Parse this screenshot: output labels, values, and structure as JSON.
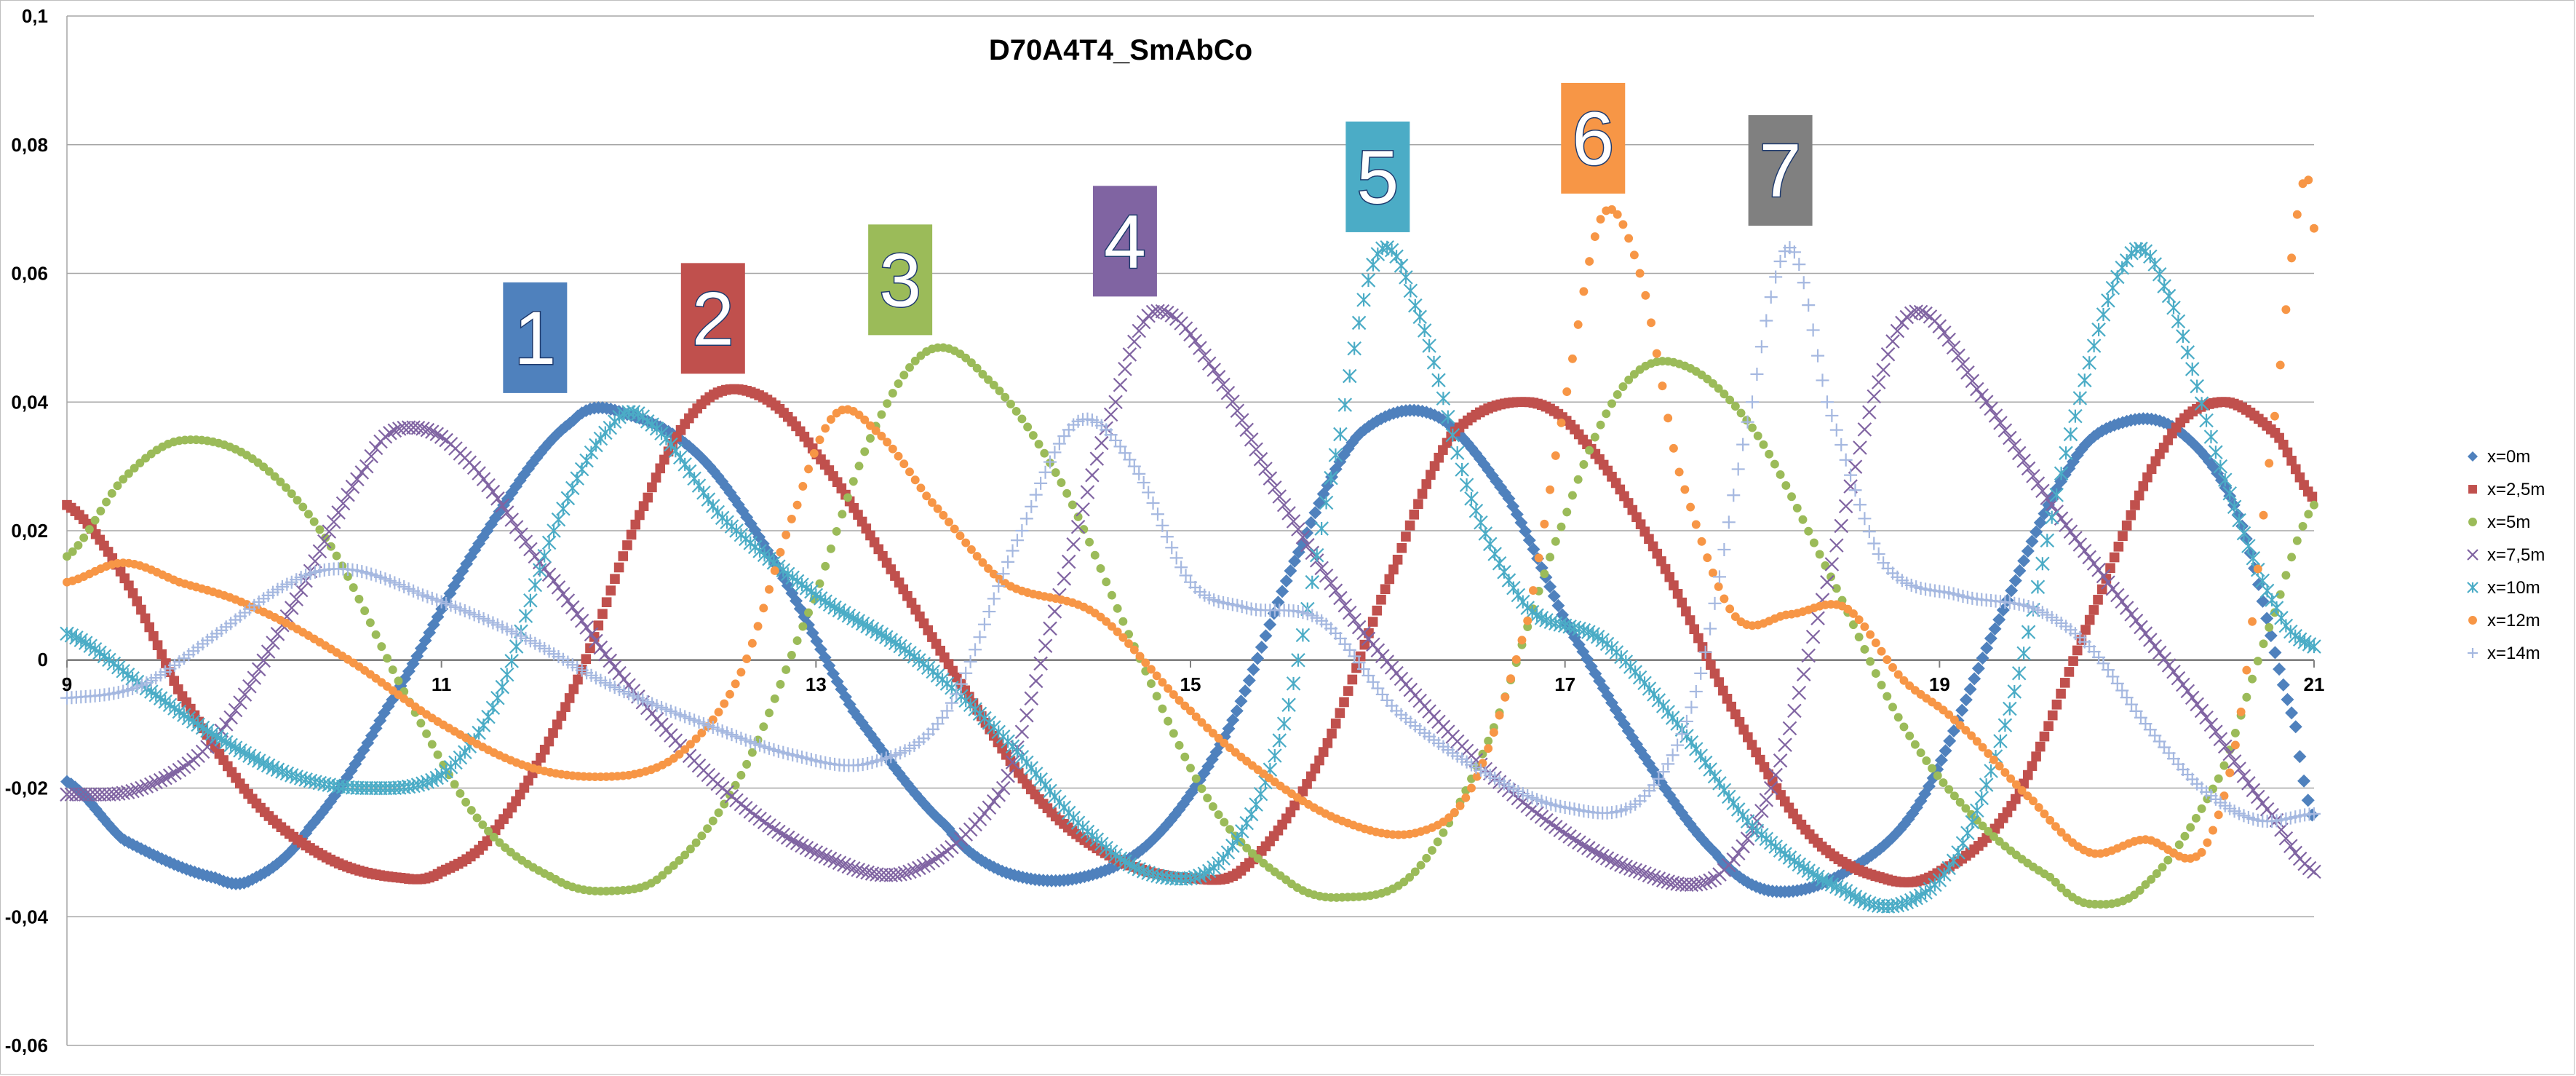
{
  "chart_data": {
    "type": "scatter",
    "title": "D70A4T4_SmAbCo",
    "xlabel": "",
    "ylabel": "",
    "xlim": [
      9,
      21
    ],
    "ylim": [
      -0.06,
      0.1
    ],
    "x_ticks": [
      "9",
      "11",
      "13",
      "15",
      "17",
      "19",
      "21"
    ],
    "y_ticks": [
      "0,1",
      "0,08",
      "0,06",
      "0,04",
      "0,02",
      "0",
      "-0,02",
      "-0,04",
      "-0,06"
    ],
    "grid": "horizontal",
    "legend_position": "right",
    "series": [
      {
        "name": "x=0m",
        "color": "#4f81bd",
        "marker": "diamond",
        "points": [
          [
            9.0,
            -0.019
          ],
          [
            9.3,
            -0.028
          ],
          [
            9.8,
            -0.034
          ],
          [
            10.0,
            -0.034
          ],
          [
            10.3,
            -0.026
          ],
          [
            10.7,
            -0.008
          ],
          [
            11.2,
            0.018
          ],
          [
            11.7,
            0.037
          ],
          [
            12.0,
            0.038
          ],
          [
            12.4,
            0.031
          ],
          [
            12.8,
            0.014
          ],
          [
            13.2,
            -0.008
          ],
          [
            13.7,
            -0.026
          ],
          [
            14.0,
            -0.033
          ],
          [
            14.4,
            -0.034
          ],
          [
            14.8,
            -0.028
          ],
          [
            15.2,
            -0.011
          ],
          [
            15.6,
            0.018
          ],
          [
            15.9,
            0.035
          ],
          [
            16.3,
            0.038
          ],
          [
            16.7,
            0.025
          ],
          [
            17.0,
            0.006
          ],
          [
            17.4,
            -0.014
          ],
          [
            17.8,
            -0.03
          ],
          [
            18.1,
            -0.036
          ],
          [
            18.5,
            -0.033
          ],
          [
            18.9,
            -0.022
          ],
          [
            19.3,
            0.005
          ],
          [
            19.7,
            0.03
          ],
          [
            20.0,
            0.037
          ],
          [
            20.3,
            0.035
          ],
          [
            20.6,
            0.022
          ],
          [
            20.9,
            -0.01
          ],
          [
            21.0,
            -0.025
          ]
        ]
      },
      {
        "name": "x=2,5m",
        "color": "#c0504d",
        "marker": "square",
        "points": [
          [
            9.0,
            0.024
          ],
          [
            9.3,
            0.013
          ],
          [
            9.6,
            -0.005
          ],
          [
            10.0,
            -0.022
          ],
          [
            10.4,
            -0.031
          ],
          [
            10.8,
            -0.034
          ],
          [
            11.0,
            -0.033
          ],
          [
            11.3,
            -0.026
          ],
          [
            11.7,
            -0.005
          ],
          [
            12.1,
            0.025
          ],
          [
            12.4,
            0.04
          ],
          [
            12.7,
            0.041
          ],
          [
            13.0,
            0.032
          ],
          [
            13.4,
            0.014
          ],
          [
            13.8,
            -0.005
          ],
          [
            14.2,
            -0.022
          ],
          [
            14.6,
            -0.031
          ],
          [
            15.0,
            -0.034
          ],
          [
            15.3,
            -0.032
          ],
          [
            15.7,
            -0.015
          ],
          [
            16.1,
            0.015
          ],
          [
            16.4,
            0.035
          ],
          [
            16.8,
            0.04
          ],
          [
            17.1,
            0.034
          ],
          [
            17.5,
            0.016
          ],
          [
            17.9,
            -0.008
          ],
          [
            18.3,
            -0.027
          ],
          [
            18.7,
            -0.034
          ],
          [
            19.0,
            -0.033
          ],
          [
            19.4,
            -0.022
          ],
          [
            19.8,
            0.006
          ],
          [
            20.2,
            0.033
          ],
          [
            20.5,
            0.04
          ],
          [
            20.8,
            0.035
          ],
          [
            21.0,
            0.025
          ]
        ]
      },
      {
        "name": "x=5m",
        "color": "#9bbb59",
        "marker": "circle",
        "points": [
          [
            9.0,
            0.016
          ],
          [
            9.3,
            0.028
          ],
          [
            9.6,
            0.034
          ],
          [
            10.0,
            0.031
          ],
          [
            10.4,
            0.018
          ],
          [
            10.8,
            -0.005
          ],
          [
            11.2,
            -0.025
          ],
          [
            11.6,
            -0.034
          ],
          [
            11.9,
            -0.036
          ],
          [
            12.2,
            -0.033
          ],
          [
            12.6,
            -0.018
          ],
          [
            13.0,
            0.01
          ],
          [
            13.3,
            0.035
          ],
          [
            13.6,
            0.048
          ],
          [
            13.9,
            0.044
          ],
          [
            14.3,
            0.028
          ],
          [
            14.7,
            0.002
          ],
          [
            15.1,
            -0.022
          ],
          [
            15.5,
            -0.034
          ],
          [
            15.8,
            -0.037
          ],
          [
            16.2,
            -0.033
          ],
          [
            16.6,
            -0.012
          ],
          [
            17.0,
            0.022
          ],
          [
            17.3,
            0.042
          ],
          [
            17.6,
            0.046
          ],
          [
            18.0,
            0.036
          ],
          [
            18.4,
            0.014
          ],
          [
            18.8,
            -0.01
          ],
          [
            19.2,
            -0.025
          ],
          [
            19.6,
            -0.034
          ],
          [
            19.8,
            -0.038
          ],
          [
            20.1,
            -0.035
          ],
          [
            20.5,
            -0.018
          ],
          [
            20.8,
            0.008
          ],
          [
            21.0,
            0.024
          ]
        ]
      },
      {
        "name": "x=7,5m",
        "color": "#8064a2",
        "marker": "x",
        "points": [
          [
            9.0,
            -0.021
          ],
          [
            9.4,
            -0.02
          ],
          [
            9.8,
            -0.012
          ],
          [
            10.2,
            0.008
          ],
          [
            10.6,
            0.03
          ],
          [
            10.8,
            0.036
          ],
          [
            11.1,
            0.032
          ],
          [
            11.5,
            0.016
          ],
          [
            12.0,
            -0.004
          ],
          [
            12.5,
            -0.02
          ],
          [
            13.0,
            -0.03
          ],
          [
            13.5,
            -0.033
          ],
          [
            14.0,
            -0.02
          ],
          [
            14.3,
            0.01
          ],
          [
            14.6,
            0.04
          ],
          [
            14.8,
            0.054
          ],
          [
            15.1,
            0.046
          ],
          [
            15.5,
            0.024
          ],
          [
            15.9,
            0.005
          ],
          [
            16.4,
            -0.012
          ],
          [
            16.9,
            -0.025
          ],
          [
            17.4,
            -0.033
          ],
          [
            17.8,
            -0.034
          ],
          [
            18.1,
            -0.02
          ],
          [
            18.4,
            0.012
          ],
          [
            18.7,
            0.045
          ],
          [
            18.9,
            0.054
          ],
          [
            19.2,
            0.042
          ],
          [
            19.6,
            0.024
          ],
          [
            20.0,
            0.008
          ],
          [
            20.4,
            -0.008
          ],
          [
            20.8,
            -0.025
          ],
          [
            21.0,
            -0.033
          ]
        ]
      },
      {
        "name": "x=10m",
        "color": "#4bacc6",
        "marker": "asterisk",
        "points": [
          [
            9.0,
            0.004
          ],
          [
            9.4,
            -0.004
          ],
          [
            9.8,
            -0.012
          ],
          [
            10.2,
            -0.018
          ],
          [
            10.6,
            -0.02
          ],
          [
            11.0,
            -0.018
          ],
          [
            11.3,
            -0.006
          ],
          [
            11.6,
            0.02
          ],
          [
            11.9,
            0.036
          ],
          [
            12.1,
            0.037
          ],
          [
            12.5,
            0.022
          ],
          [
            13.0,
            0.01
          ],
          [
            13.5,
            0.001
          ],
          [
            14.0,
            -0.012
          ],
          [
            14.5,
            -0.028
          ],
          [
            14.9,
            -0.034
          ],
          [
            15.2,
            -0.03
          ],
          [
            15.5,
            -0.01
          ],
          [
            15.8,
            0.035
          ],
          [
            16.0,
            0.063
          ],
          [
            16.2,
            0.055
          ],
          [
            16.5,
            0.025
          ],
          [
            16.8,
            0.008
          ],
          [
            17.2,
            0.003
          ],
          [
            17.6,
            -0.01
          ],
          [
            18.0,
            -0.026
          ],
          [
            18.5,
            -0.036
          ],
          [
            18.8,
            -0.038
          ],
          [
            19.1,
            -0.03
          ],
          [
            19.4,
            -0.005
          ],
          [
            19.7,
            0.035
          ],
          [
            20.0,
            0.062
          ],
          [
            20.2,
            0.058
          ],
          [
            20.5,
            0.03
          ],
          [
            20.8,
            0.008
          ],
          [
            21.0,
            0.002
          ]
        ]
      },
      {
        "name": "x=12m",
        "color": "#f79646",
        "marker": "circle",
        "points": [
          [
            9.0,
            0.012
          ],
          [
            9.3,
            0.015
          ],
          [
            9.6,
            0.012
          ],
          [
            10.0,
            0.008
          ],
          [
            10.5,
            0.0
          ],
          [
            11.0,
            -0.01
          ],
          [
            11.5,
            -0.017
          ],
          [
            12.0,
            -0.018
          ],
          [
            12.3,
            -0.014
          ],
          [
            12.6,
            -0.002
          ],
          [
            12.9,
            0.024
          ],
          [
            13.1,
            0.038
          ],
          [
            13.3,
            0.036
          ],
          [
            13.6,
            0.025
          ],
          [
            14.0,
            0.012
          ],
          [
            14.5,
            0.007
          ],
          [
            15.0,
            -0.008
          ],
          [
            15.4,
            -0.018
          ],
          [
            15.8,
            -0.025
          ],
          [
            16.2,
            -0.027
          ],
          [
            16.5,
            -0.02
          ],
          [
            16.8,
            0.006
          ],
          [
            17.0,
            0.04
          ],
          [
            17.2,
            0.069
          ],
          [
            17.4,
            0.06
          ],
          [
            17.6,
            0.03
          ],
          [
            17.9,
            0.007
          ],
          [
            18.2,
            0.007
          ],
          [
            18.5,
            0.008
          ],
          [
            18.8,
            -0.003
          ],
          [
            19.1,
            -0.01
          ],
          [
            19.5,
            -0.022
          ],
          [
            19.8,
            -0.03
          ],
          [
            20.1,
            -0.028
          ],
          [
            20.4,
            -0.03
          ],
          [
            20.6,
            -0.01
          ],
          [
            20.8,
            0.04
          ],
          [
            20.95,
            0.075
          ],
          [
            21.0,
            0.067
          ]
        ]
      },
      {
        "name": "x=14m",
        "color": "#a5b8e0",
        "marker": "plus",
        "points": [
          [
            9.0,
            -0.006
          ],
          [
            9.4,
            -0.004
          ],
          [
            9.8,
            0.004
          ],
          [
            10.2,
            0.012
          ],
          [
            10.5,
            0.014
          ],
          [
            10.9,
            0.01
          ],
          [
            11.4,
            0.004
          ],
          [
            11.9,
            -0.004
          ],
          [
            12.4,
            -0.01
          ],
          [
            12.9,
            -0.015
          ],
          [
            13.3,
            -0.016
          ],
          [
            13.7,
            -0.008
          ],
          [
            14.1,
            0.02
          ],
          [
            14.4,
            0.037
          ],
          [
            14.7,
            0.03
          ],
          [
            15.0,
            0.012
          ],
          [
            15.3,
            0.008
          ],
          [
            15.7,
            0.006
          ],
          [
            16.1,
            -0.008
          ],
          [
            16.6,
            -0.018
          ],
          [
            17.0,
            -0.023
          ],
          [
            17.4,
            -0.022
          ],
          [
            17.7,
            -0.005
          ],
          [
            18.0,
            0.04
          ],
          [
            18.2,
            0.064
          ],
          [
            18.4,
            0.04
          ],
          [
            18.7,
            0.015
          ],
          [
            19.1,
            0.01
          ],
          [
            19.5,
            0.008
          ],
          [
            19.8,
            0.002
          ],
          [
            20.1,
            -0.01
          ],
          [
            20.4,
            -0.02
          ],
          [
            20.7,
            -0.025
          ],
          [
            21.0,
            -0.024
          ]
        ]
      }
    ],
    "annotations": [
      {
        "text": "1",
        "color": "#4f81bd",
        "x": 11.5,
        "y": 0.05
      },
      {
        "text": "2",
        "color": "#c0504d",
        "x": 12.45,
        "y": 0.053
      },
      {
        "text": "3",
        "color": "#9bbb59",
        "x": 13.45,
        "y": 0.059
      },
      {
        "text": "4",
        "color": "#8064a2",
        "x": 14.65,
        "y": 0.065
      },
      {
        "text": "5",
        "color": "#4bacc6",
        "x": 16.0,
        "y": 0.075
      },
      {
        "text": "6",
        "color": "#f79646",
        "x": 17.15,
        "y": 0.081
      },
      {
        "text": "7",
        "color": "#808080",
        "x": 18.15,
        "y": 0.076
      }
    ]
  }
}
